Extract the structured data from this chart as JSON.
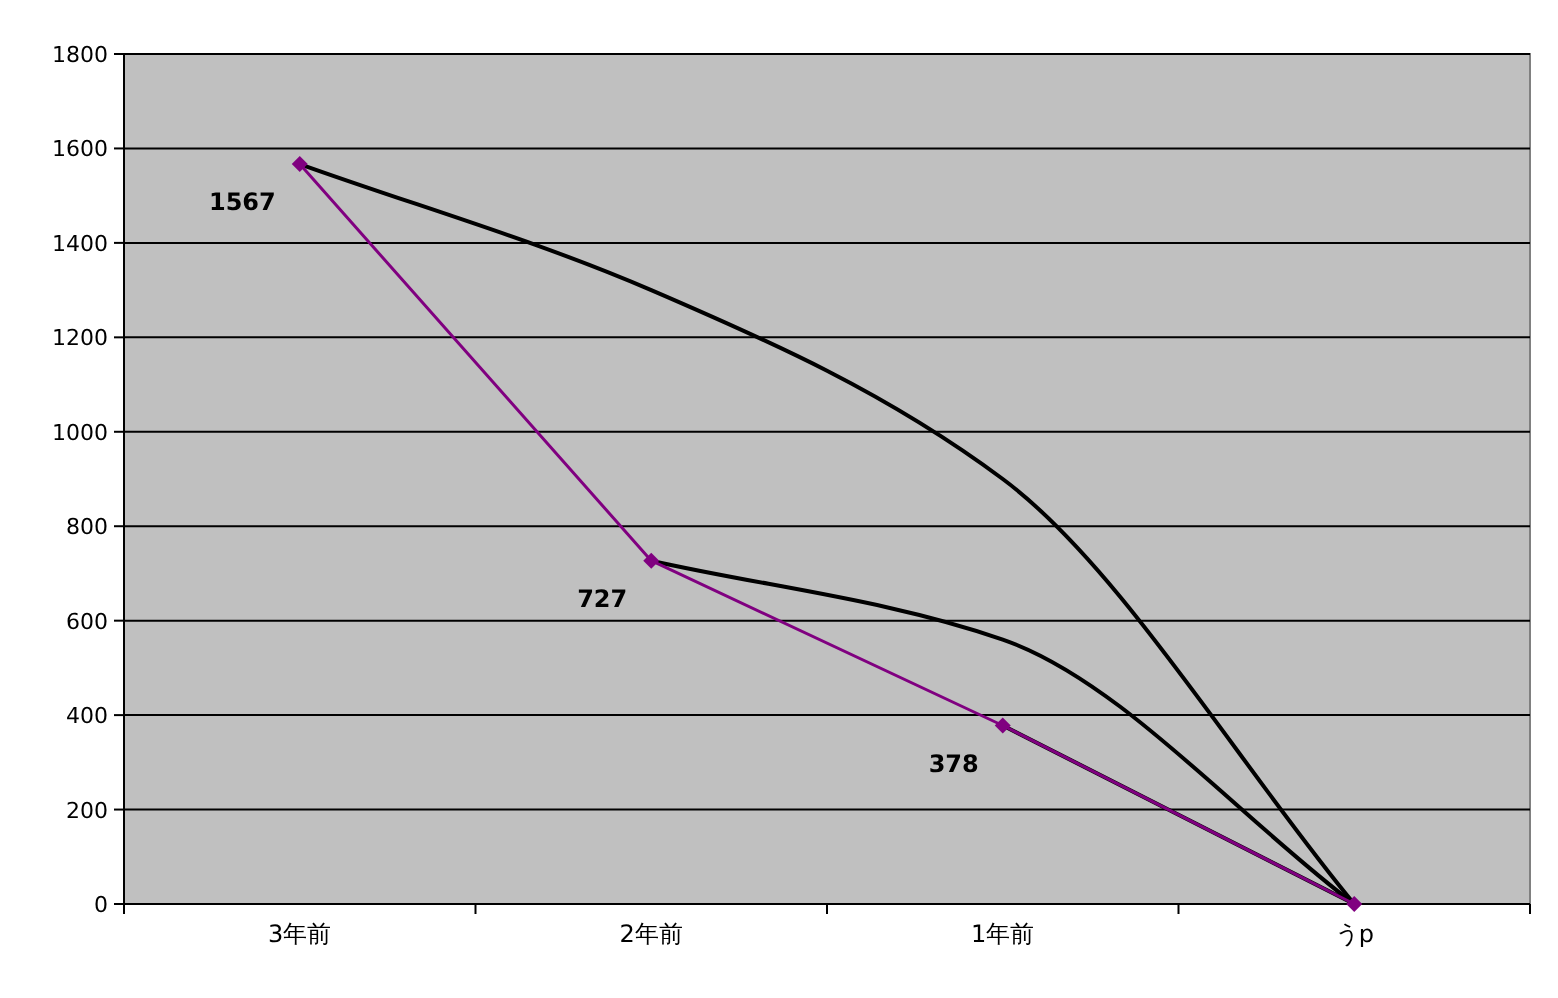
{
  "chart_data": {
    "type": "line",
    "categories": [
      "3年前",
      "2年前",
      "1年前",
      "うp"
    ],
    "series": [
      {
        "color": "#000000",
        "values": [
          1567,
          1300,
          900,
          0
        ],
        "marker": "none"
      },
      {
        "color": "#000000",
        "values": [
          null,
          727,
          560,
          0
        ],
        "marker": "none"
      },
      {
        "color": "#000000",
        "values": [
          null,
          null,
          378,
          0
        ],
        "marker": "none"
      },
      {
        "color": "#800080",
        "values": [
          1567,
          727,
          378,
          0
        ],
        "marker": "diamond",
        "value_labels": [
          "1567",
          "727",
          "378",
          null
        ]
      }
    ],
    "ylim": [
      0,
      1800
    ],
    "yticks": [
      0,
      200,
      400,
      600,
      800,
      1000,
      1200,
      1400,
      1600,
      1800
    ],
    "grid": "y"
  }
}
